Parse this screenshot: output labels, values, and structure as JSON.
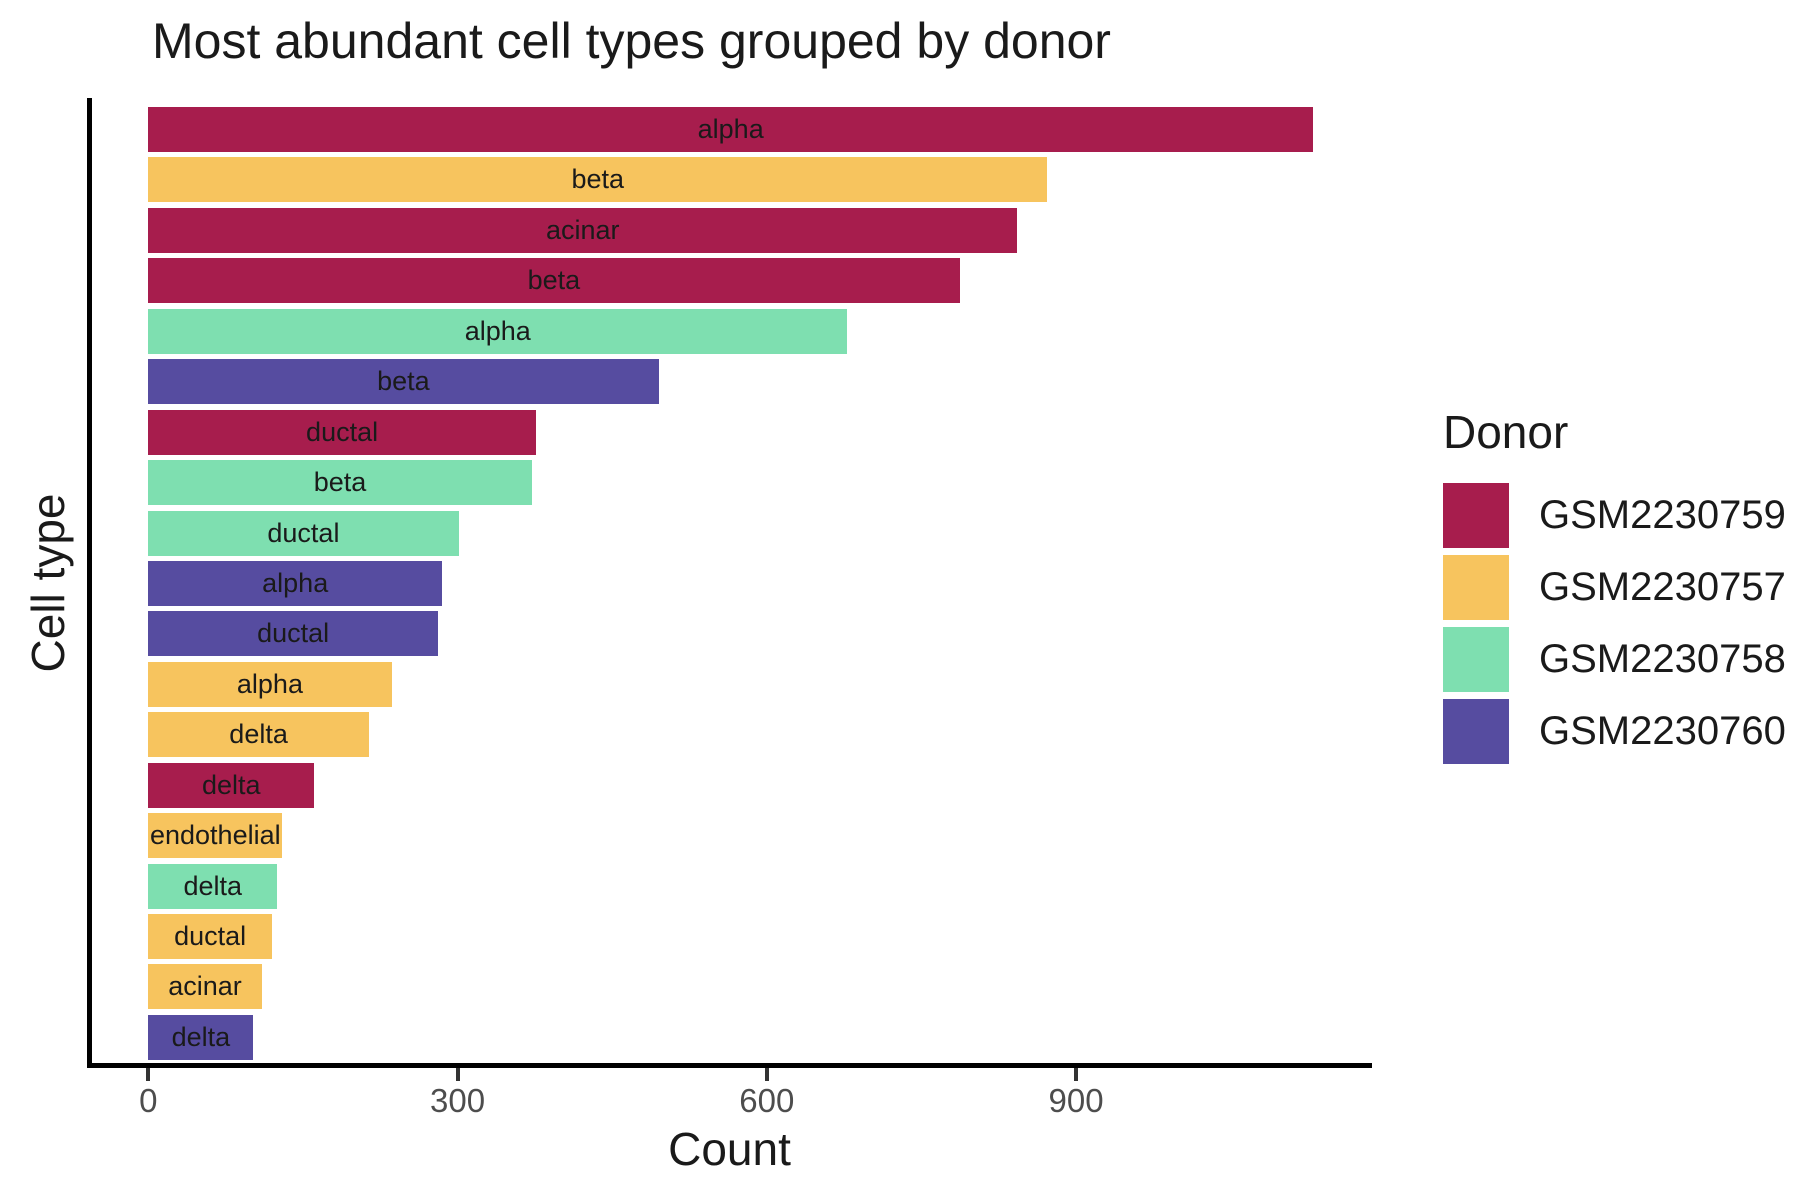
{
  "chart_data": {
    "type": "bar",
    "orientation": "horizontal",
    "title": "Most abundant cell types grouped by donor",
    "xlabel": "Count",
    "ylabel": "Cell type",
    "xlim": [
      0,
      1190
    ],
    "x_ticks": [
      0,
      300,
      600,
      900
    ],
    "grid": false,
    "background_color": "#FFFFFF",
    "axis_line_color": "#000000",
    "tick_label_color": "#4D4D4D",
    "bar_label_color": "#1A1A1A",
    "legend": {
      "title": "Donor",
      "position": "right",
      "entries": [
        {
          "label": "GSM2230759",
          "color": "#A71D4D"
        },
        {
          "label": "GSM2230757",
          "color": "#F7C45E"
        },
        {
          "label": "GSM2230758",
          "color": "#7EDFB0"
        },
        {
          "label": "GSM2230760",
          "color": "#564CA0"
        }
      ]
    },
    "bars": [
      {
        "cell_type": "alpha",
        "donor": "GSM2230759",
        "count": 1130
      },
      {
        "cell_type": "beta",
        "donor": "GSM2230757",
        "count": 872
      },
      {
        "cell_type": "acinar",
        "donor": "GSM2230759",
        "count": 843
      },
      {
        "cell_type": "beta",
        "donor": "GSM2230759",
        "count": 787
      },
      {
        "cell_type": "alpha",
        "donor": "GSM2230758",
        "count": 678
      },
      {
        "cell_type": "beta",
        "donor": "GSM2230760",
        "count": 495
      },
      {
        "cell_type": "ductal",
        "donor": "GSM2230759",
        "count": 376
      },
      {
        "cell_type": "beta",
        "donor": "GSM2230758",
        "count": 372
      },
      {
        "cell_type": "ductal",
        "donor": "GSM2230758",
        "count": 301
      },
      {
        "cell_type": "alpha",
        "donor": "GSM2230760",
        "count": 285
      },
      {
        "cell_type": "ductal",
        "donor": "GSM2230760",
        "count": 281
      },
      {
        "cell_type": "alpha",
        "donor": "GSM2230757",
        "count": 236
      },
      {
        "cell_type": "delta",
        "donor": "GSM2230757",
        "count": 214
      },
      {
        "cell_type": "delta",
        "donor": "GSM2230759",
        "count": 161
      },
      {
        "cell_type": "endothelial",
        "donor": "GSM2230757",
        "count": 130
      },
      {
        "cell_type": "delta",
        "donor": "GSM2230758",
        "count": 125
      },
      {
        "cell_type": "ductal",
        "donor": "GSM2230757",
        "count": 120
      },
      {
        "cell_type": "acinar",
        "donor": "GSM2230757",
        "count": 110
      },
      {
        "cell_type": "delta",
        "donor": "GSM2230760",
        "count": 102
      }
    ]
  }
}
